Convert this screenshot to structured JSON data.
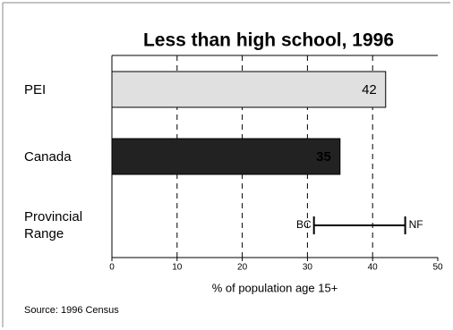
{
  "chart_data": {
    "type": "bar",
    "orientation": "horizontal",
    "title": "Less than high school, 1996",
    "x_label": "% of population age 15+",
    "source": "Source: 1996 Census",
    "categories": [
      "PEI",
      "Canada",
      "Provincial Range"
    ],
    "values": [
      42,
      35,
      null
    ],
    "colors": [
      "#e0e0e0",
      "#222222"
    ],
    "range": {
      "low": 31,
      "high": 45,
      "low_label": "BC",
      "high_label": "NF"
    },
    "xlim": [
      0,
      50
    ],
    "xticks": [
      0,
      10,
      20,
      30,
      40,
      50
    ],
    "grid": true
  }
}
